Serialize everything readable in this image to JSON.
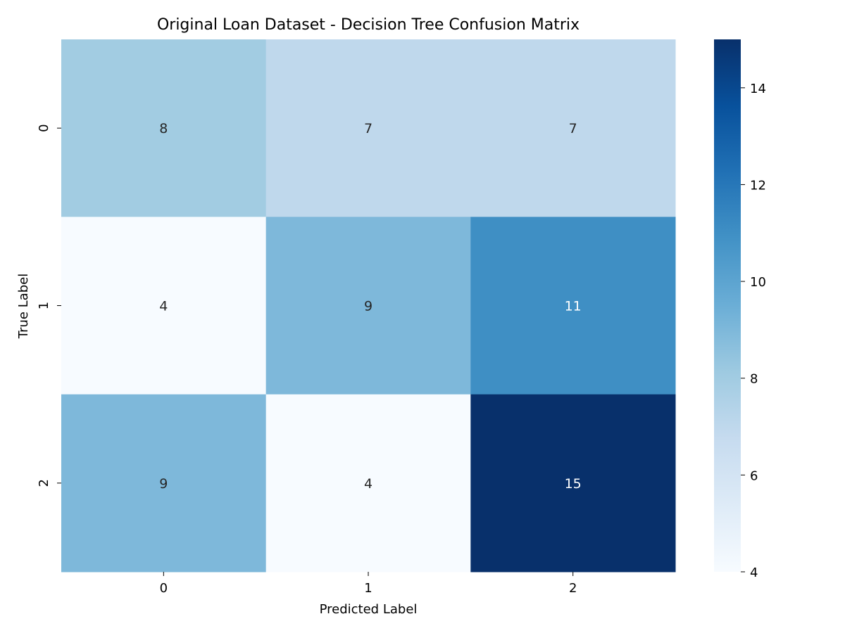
{
  "chart_data": {
    "type": "heatmap",
    "title": "Original Loan Dataset - Decision Tree Confusion Matrix",
    "xlabel": "Predicted Label",
    "ylabel": "True Label",
    "x_categories": [
      "0",
      "1",
      "2"
    ],
    "y_categories": [
      "0",
      "1",
      "2"
    ],
    "values": [
      [
        8,
        7,
        7
      ],
      [
        4,
        9,
        11
      ],
      [
        9,
        4,
        15
      ]
    ],
    "colormap": "Blues",
    "color_range": [
      4,
      15
    ],
    "colorbar_ticks": [
      4,
      6,
      8,
      10,
      12,
      14
    ],
    "colorbar_tick_labels": [
      "4",
      "6",
      "8",
      "10",
      "12",
      "14"
    ],
    "annotations": true,
    "grid": false
  }
}
